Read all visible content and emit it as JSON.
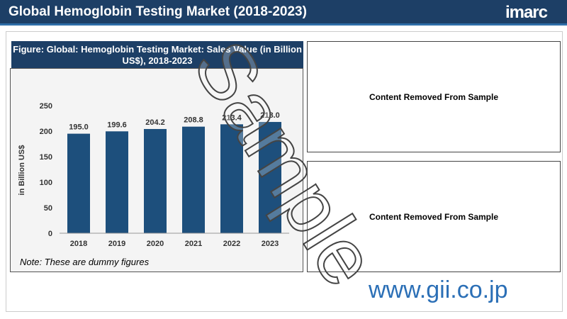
{
  "header": {
    "title": "Global Hemoglobin Testing Market (2018-2023)",
    "logo": "imarc"
  },
  "chart_data": {
    "type": "bar",
    "title": "Figure: Global: Hemoglobin Testing Market: Sales Value (in Billion US$), 2018-2023",
    "y_label": "in Billion US$",
    "categories": [
      "2018",
      "2019",
      "2020",
      "2021",
      "2022",
      "2023"
    ],
    "values": [
      195.0,
      199.6,
      204.2,
      208.8,
      213.4,
      218.0
    ],
    "value_labels": [
      "195.0",
      "199.6",
      "204.2",
      "208.8",
      "213.4",
      "218.0"
    ],
    "color": "#1d4f7c",
    "ylim": [
      0,
      250
    ],
    "yticks": [
      0,
      50,
      100,
      150,
      200,
      250
    ],
    "grid": false,
    "note": "Note: These are dummy figures"
  },
  "panels": [
    "Content Removed From Sample",
    "Content Removed From Sample"
  ],
  "watermark": "Sample",
  "footer": "www.gii.co.jp"
}
